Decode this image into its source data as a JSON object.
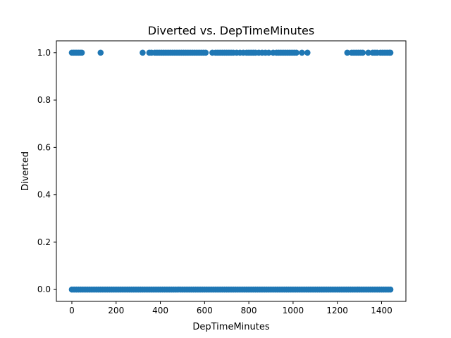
{
  "chart_data": {
    "type": "scatter",
    "title": "Diverted vs. DepTimeMinutes",
    "xlabel": "DepTimeMinutes",
    "ylabel": "Diverted",
    "xlim": [
      -70,
      1510
    ],
    "ylim": [
      -0.05,
      1.05
    ],
    "x_ticks": [
      0,
      200,
      400,
      600,
      800,
      1000,
      1200,
      1400
    ],
    "y_ticks": [
      0.0,
      0.2,
      0.4,
      0.6,
      0.8,
      1.0
    ],
    "x_tick_labels": [
      "0",
      "200",
      "400",
      "600",
      "800",
      "1000",
      "1200",
      "1400"
    ],
    "y_tick_labels": [
      "0.0",
      "0.2",
      "0.4",
      "0.6",
      "0.8",
      "1.0"
    ],
    "grid": false,
    "marker_color": "#1f77b4",
    "series": [
      {
        "values_y0_x": [
          0,
          10,
          20,
          30,
          40,
          50,
          60,
          70,
          80,
          90,
          100,
          110,
          120,
          130,
          140,
          150,
          160,
          170,
          180,
          190,
          200,
          210,
          220,
          230,
          240,
          250,
          260,
          270,
          280,
          290,
          300,
          310,
          320,
          330,
          340,
          350,
          360,
          370,
          380,
          390,
          400,
          410,
          420,
          430,
          440,
          450,
          460,
          470,
          480,
          490,
          500,
          510,
          520,
          530,
          540,
          550,
          560,
          570,
          580,
          590,
          600,
          610,
          620,
          630,
          640,
          650,
          660,
          670,
          680,
          690,
          700,
          710,
          720,
          730,
          740,
          750,
          760,
          770,
          780,
          790,
          800,
          810,
          820,
          830,
          840,
          850,
          860,
          870,
          880,
          890,
          900,
          910,
          920,
          930,
          940,
          950,
          960,
          970,
          980,
          990,
          1000,
          1010,
          1020,
          1030,
          1040,
          1050,
          1060,
          1070,
          1080,
          1090,
          1100,
          1110,
          1120,
          1130,
          1140,
          1150,
          1160,
          1170,
          1180,
          1190,
          1200,
          1210,
          1220,
          1230,
          1240,
          1250,
          1260,
          1270,
          1280,
          1290,
          1300,
          1310,
          1320,
          1330,
          1340,
          1350,
          1360,
          1370,
          1380,
          1390,
          1400,
          1410,
          1420,
          1430,
          1440
        ],
        "values_y1_x": [
          0,
          8,
          15,
          22,
          30,
          38,
          45,
          130,
          320,
          350,
          360,
          375,
          385,
          395,
          405,
          415,
          425,
          435,
          445,
          455,
          465,
          475,
          485,
          495,
          505,
          515,
          525,
          535,
          545,
          555,
          565,
          575,
          585,
          595,
          605,
          635,
          650,
          660,
          670,
          680,
          690,
          700,
          710,
          720,
          730,
          745,
          760,
          775,
          790,
          800,
          810,
          820,
          830,
          845,
          860,
          875,
          890,
          910,
          925,
          935,
          945,
          955,
          965,
          975,
          985,
          995,
          1005,
          1015,
          1040,
          1065,
          1245,
          1265,
          1275,
          1285,
          1295,
          1305,
          1315,
          1340,
          1360,
          1370,
          1380,
          1395,
          1405,
          1415,
          1425,
          1435,
          1440
        ]
      }
    ]
  }
}
